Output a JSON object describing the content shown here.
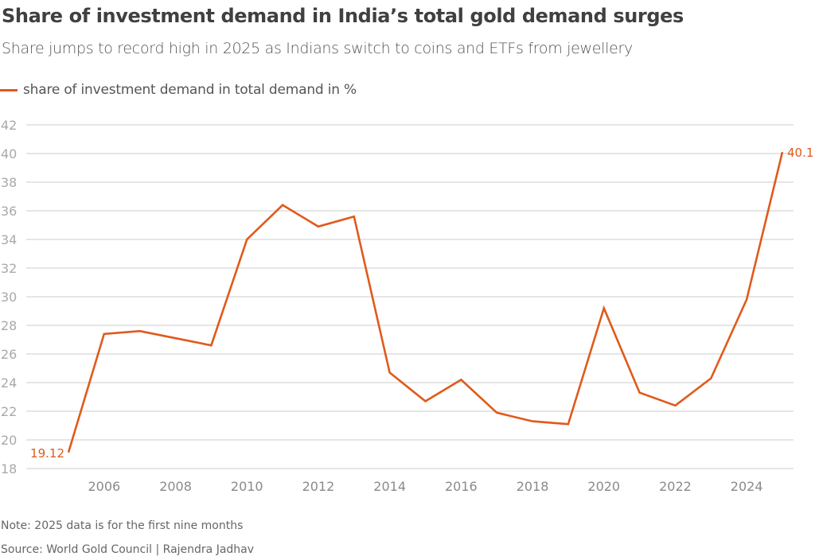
{
  "title": "Share of investment demand in India’s total gold demand surges",
  "subtitle": "Share jumps to record high in 2025 as Indians switch to coins and ETFs from jewellery",
  "footer": {
    "note": "Note: 2025 data is for the first nine months",
    "source": "Source: World Gold Council | Rajendra Jadhav"
  },
  "colors": {
    "series": "#e05a1a",
    "grid": "#d6d6d6"
  },
  "chart_data": {
    "type": "line",
    "title": "Share of investment demand in India’s total gold demand surges",
    "subtitle": "Share jumps to record high in 2025 as Indians switch to coins and ETFs from jewellery",
    "xlabel": "",
    "ylabel": "",
    "x": [
      2005,
      2006,
      2007,
      2008,
      2009,
      2010,
      2011,
      2012,
      2013,
      2014,
      2015,
      2016,
      2017,
      2018,
      2019,
      2020,
      2021,
      2022,
      2023,
      2024,
      2025
    ],
    "series": [
      {
        "name": "share of investment demand in total demand in %",
        "values": [
          19.12,
          27.4,
          27.6,
          27.1,
          26.6,
          34.0,
          36.4,
          34.9,
          35.6,
          24.7,
          22.7,
          24.2,
          21.9,
          21.3,
          21.1,
          29.2,
          23.3,
          22.4,
          24.3,
          29.8,
          40.1
        ]
      }
    ],
    "xlim": [
      2004.0,
      2025.3
    ],
    "ylim": [
      18,
      42
    ],
    "yticks": [
      18,
      20,
      22,
      24,
      26,
      28,
      30,
      32,
      34,
      36,
      38,
      40,
      42
    ],
    "xticks": [
      2006,
      2008,
      2010,
      2012,
      2014,
      2016,
      2018,
      2020,
      2022,
      2024
    ],
    "data_labels": [
      {
        "x": 2005,
        "text": "19.12",
        "side": "left"
      },
      {
        "x": 2025,
        "text": "40.1",
        "side": "right"
      }
    ],
    "grid": true,
    "legend": "top-left"
  }
}
